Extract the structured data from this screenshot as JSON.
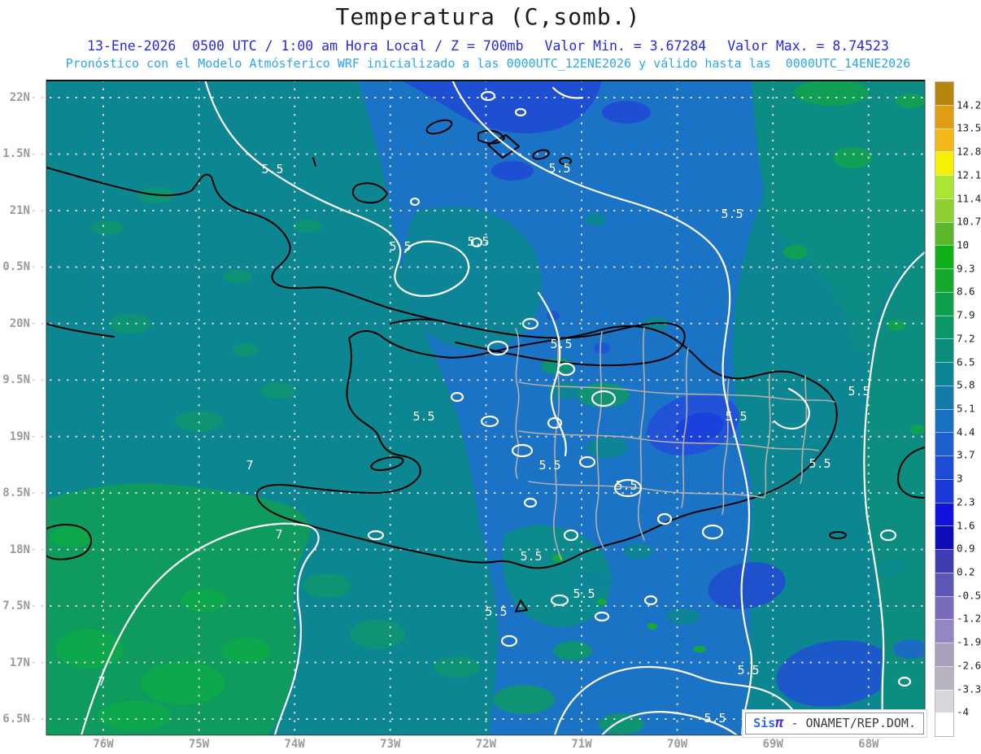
{
  "header": {
    "title": "Temperatura (C,somb.)",
    "line2_left": "13-Ene-2026  0500 UTC / 1:00 am Hora Local / Z = 700mb",
    "line2_min": "Valor Min. = 3.67284",
    "line2_max": "Valor Max. = 8.74523",
    "line3": "Pronóstico con el Modelo Atmósferico WRF inicializado a las 0000UTC_12ENE2026 y válido hasta las  0000UTC_14ENE2026"
  },
  "axes": {
    "y_labels": [
      "22N",
      "1.5N",
      "21N",
      "0.5N",
      "20N",
      "9.5N",
      "19N",
      "8.5N",
      "18N",
      "7.5N",
      "17N",
      "6.5N"
    ],
    "x_labels": [
      "76W",
      "75W",
      "74W",
      "73W",
      "72W",
      "71W",
      "70W",
      "69W",
      "68W"
    ]
  },
  "colorbar": {
    "tick_labels": [
      "14.2",
      "13.5",
      "12.8",
      "12.1",
      "11.4",
      "10.7",
      "10",
      "9.3",
      "8.6",
      "7.9",
      "7.2",
      "6.5",
      "5.8",
      "5.1",
      "4.4",
      "3.7",
      "3",
      "2.3",
      "1.6",
      "0.9",
      "0.2",
      "-0.5",
      "-1.2",
      "-1.9",
      "-2.6",
      "-3.3",
      "-4"
    ],
    "segment_colors": [
      "#b5860d",
      "#e09c12",
      "#f2b817",
      "#f6ef06",
      "#abe434",
      "#8ed032",
      "#5cb72b",
      "#0faf19",
      "#17a92d",
      "#10a04d",
      "#0d9668",
      "#0b8d7c",
      "#0c8492",
      "#137aa9",
      "#1a70c1",
      "#1d60ce",
      "#1d4dd5",
      "#1b3ad7",
      "#1312dd",
      "#0d0cb8",
      "#403cb1",
      "#5d57b7",
      "#7a6cba",
      "#9486c1",
      "#a9a1bc",
      "#b6b2bf",
      "#d9d7dc",
      "#ffffff"
    ]
  },
  "map": {
    "contour_label_55": "5.5",
    "contour_label_7": "7"
  },
  "branding": {
    "sis": "Sis",
    "pi": "π",
    "suffix": " - ONAMET/REP.DOM."
  },
  "chart_data": {
    "type": "heatmap",
    "title": "Temperatura (C,somb.)",
    "variable": "Temperatura",
    "units": "C",
    "level": "700mb",
    "valid_datetime": "13-Ene-2026 0500 UTC / 1:00 am Hora Local",
    "value_min": 3.67284,
    "value_max": 8.74523,
    "model": "WRF",
    "model_init": "0000UTC_12ENE2026",
    "model_valid_until": "0000UTC_14ENE2026",
    "x_axis": {
      "ticks": [
        "76W",
        "75W",
        "74W",
        "73W",
        "72W",
        "71W",
        "70W",
        "69W",
        "68W"
      ]
    },
    "y_axis": {
      "ticks": [
        "22N",
        "1.5N",
        "21N",
        "0.5N",
        "20N",
        "9.5N",
        "19N",
        "8.5N",
        "18N",
        "7.5N",
        "17N",
        "6.5N"
      ]
    },
    "labeled_contours": [
      5.5,
      7
    ],
    "grid": true,
    "legend_position": "right",
    "colorbar": {
      "levels": [
        -4,
        -3.3,
        -2.6,
        -1.9,
        -1.2,
        -0.5,
        0.2,
        0.9,
        1.6,
        2.3,
        3,
        3.7,
        4.4,
        5.1,
        5.8,
        6.5,
        7.2,
        7.9,
        8.6,
        9.3,
        10,
        10.7,
        11.4,
        12.1,
        12.8,
        13.5,
        14.2
      ],
      "colors_top_to_bottom": [
        "#b5860d",
        "#e09c12",
        "#f2b817",
        "#f6ef06",
        "#abe434",
        "#8ed032",
        "#5cb72b",
        "#0faf19",
        "#17a92d",
        "#10a04d",
        "#0d9668",
        "#0b8d7c",
        "#0c8492",
        "#137aa9",
        "#1a70c1",
        "#1d60ce",
        "#1d4dd5",
        "#1b3ad7",
        "#1312dd",
        "#0d0cb8",
        "#403cb1",
        "#5d57b7",
        "#7a6cba",
        "#9486c1",
        "#a9a1bc",
        "#b6b2bf",
        "#d9d7dc",
        "#ffffff"
      ]
    },
    "credit": "Sisπ - ONAMET/REP.DOM."
  }
}
